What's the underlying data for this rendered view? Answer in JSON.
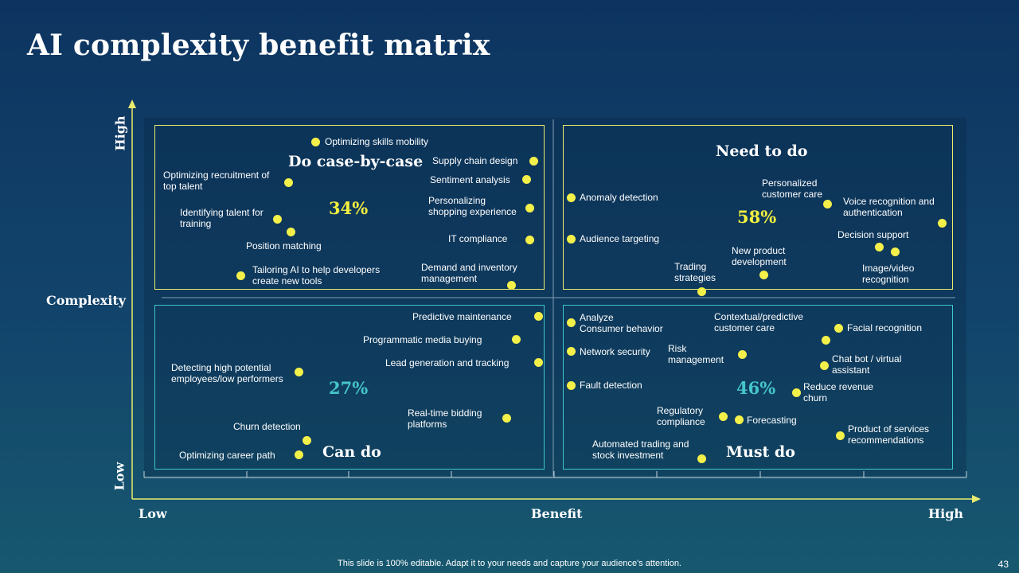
{
  "title": "AI complexity benefit matrix",
  "axes": {
    "y_label": "Complexity",
    "y_high": "High",
    "y_low": "Low",
    "x_label": "Benefit",
    "x_low": "Low",
    "x_high": "High"
  },
  "quadrants": {
    "top_left": {
      "title": "Do case-by-case",
      "percent": "34%"
    },
    "top_right": {
      "title": "Need to do",
      "percent": "58%"
    },
    "bottom_left": {
      "title": "Can do",
      "percent": "27%"
    },
    "bottom_right": {
      "title": "Must do",
      "percent": "46%"
    }
  },
  "items": {
    "skills_mobility": "Optimizing skills mobility",
    "recruitment": "Optimizing recruitment of\ntop talent",
    "identifying_talent": "Identifying talent for\ntraining",
    "position_matching": "Position matching",
    "tailoring_ai": "Tailoring AI to help developers\ncreate new tools",
    "supply_chain": "Supply chain design",
    "sentiment": "Sentiment analysis",
    "personalizing_shopping": "Personalizing\nshopping experience",
    "it_compliance": "IT compliance",
    "demand_inventory": "Demand and inventory\nmanagement",
    "anomaly": "Anomaly detection",
    "audience": "Audience targeting",
    "personalized_care": "Personalized\ncustomer care",
    "voice": "Voice recognition and\nauthentication",
    "decision": "Decision support",
    "new_product": "New product\ndevelopment",
    "trading": "Trading\nstrategies",
    "image_video": "Image/video\nrecognition",
    "predictive_maint": "Predictive maintenance",
    "programmatic": "Programmatic media buying",
    "lead_gen": "Lead generation and tracking",
    "detecting_high": "Detecting high potential\nemployees/low performers",
    "rtb": "Real-time bidding\nplatforms",
    "churn_detection": "Churn detection",
    "career_path": "Optimizing career path",
    "analyze_consumer": "Analyze\nConsumer behavior",
    "network_security": "Network security",
    "fault_detection": "Fault detection",
    "contextual_care": "Contextual/predictive\ncustomer care",
    "facial": "Facial recognition",
    "risk": "Risk\nmanagement",
    "chatbot": "Chat bot / virtual\nassistant",
    "reduce_churn": "Reduce revenue\nchurn",
    "regulatory": "Regulatory\ncompliance",
    "forecasting": "Forecasting",
    "product_recs": "Product of services\nrecommendations",
    "automated_trading": "Automated trading and\nstock investment"
  },
  "colors": {
    "dot": "#f4f04a",
    "top_border": "#e9ec6e",
    "bottom_border": "#3fc6c9",
    "pct_yellow": "#f2ef3e",
    "pct_teal": "#45c5cb",
    "axis": "#e9ec6e"
  },
  "footer": "This slide is 100% editable. Adapt it to your needs and capture your audience's attention.",
  "page_number": "43"
}
